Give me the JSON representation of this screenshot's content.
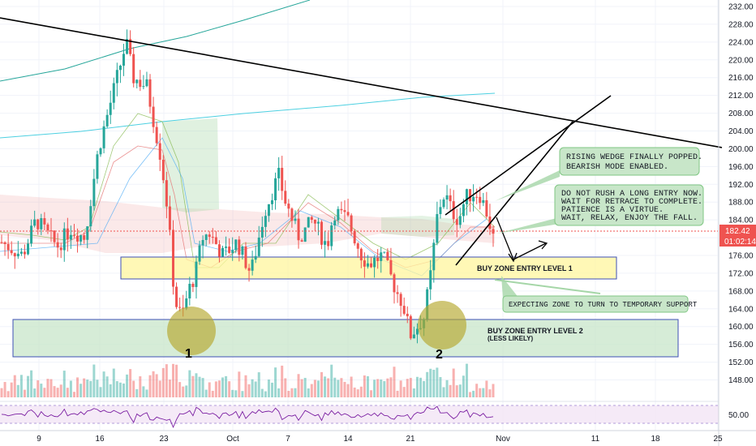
{
  "chart_data": {
    "type": "candlestick",
    "price_axis": {
      "min": 146,
      "max": 233,
      "ticks": [
        "232.00",
        "228.00",
        "224.00",
        "220.00",
        "216.00",
        "212.00",
        "208.00",
        "204.00",
        "200.00",
        "196.00",
        "192.00",
        "188.00",
        "184.00",
        "180.00",
        "176.00",
        "172.00",
        "168.00",
        "164.00",
        "160.00",
        "156.00",
        "152.00",
        "148.00"
      ]
    },
    "rsi_axis": {
      "tick": "50.00"
    },
    "time_axis": {
      "ticks": [
        "9",
        "16",
        "23",
        "Oct",
        "7",
        "14",
        "21",
        "Nov",
        "11",
        "18",
        "25"
      ]
    },
    "last_price": "182.42",
    "countdown": "01:02:14",
    "price_path": [
      [
        0,
        179
      ],
      [
        3,
        176
      ],
      [
        5,
        184
      ],
      [
        8,
        178
      ],
      [
        10,
        182
      ],
      [
        12,
        180
      ],
      [
        14,
        200
      ],
      [
        16,
        212
      ],
      [
        18,
        224
      ],
      [
        19,
        216
      ],
      [
        21,
        214
      ],
      [
        22,
        206
      ],
      [
        23,
        198
      ],
      [
        24,
        186
      ],
      [
        25,
        166
      ],
      [
        26,
        162
      ],
      [
        27,
        168
      ],
      [
        28,
        172
      ],
      [
        29,
        180
      ],
      [
        30,
        181
      ],
      [
        32,
        176
      ],
      [
        34,
        179
      ],
      [
        36,
        172
      ],
      [
        38,
        186
      ],
      [
        40,
        194
      ],
      [
        41,
        188
      ],
      [
        43,
        180
      ],
      [
        45,
        184
      ],
      [
        47,
        178
      ],
      [
        48,
        186
      ],
      [
        50,
        184
      ],
      [
        52,
        176
      ],
      [
        53,
        174
      ],
      [
        55,
        176
      ],
      [
        57,
        168
      ],
      [
        58,
        165
      ],
      [
        59,
        158
      ],
      [
        60,
        160
      ],
      [
        61,
        162
      ],
      [
        62,
        172
      ],
      [
        63,
        186
      ],
      [
        64,
        190
      ],
      [
        65,
        186
      ],
      [
        66,
        184
      ],
      [
        67,
        189
      ],
      [
        68,
        190
      ],
      [
        69,
        190
      ],
      [
        70,
        186
      ],
      [
        71,
        180
      ]
    ],
    "annotations": {
      "wedge_note": [
        "RISING WEDGE FINALLY POPPED.",
        "BEARISH MODE ENABLED."
      ],
      "entry_note": [
        "DO NOT RUSH A LONG ENTRY NOW.",
        "WAIT FOR RETRACE TO COMPLETE.",
        "PATIENCE IS A VIRTUE.",
        "WAIT, RELAX, ENJOY THE FALL."
      ],
      "zone1_label": "BUY ZONE ENTRY LEVEL 1",
      "support_note": "EXPECTING ZONE TO TURN TO TEMPORARY SUPPORT",
      "zone2_label": [
        "BUY ZONE ENTRY LEVEL 2",
        "(LESS LIKELY)"
      ],
      "marker_1": "1",
      "marker_2": "2"
    },
    "colors": {
      "up": "#26a69a",
      "down": "#ef5350",
      "zone1_fill": "#fff59d",
      "zone2_fill": "#c8e6c9",
      "callout_fill": "#c8e6c9",
      "marker_circle": "#b5a82c",
      "rsi_band": "#f3e5f5",
      "rsi_line": "#7b1fa2",
      "price_tag": "#ef5350"
    }
  }
}
